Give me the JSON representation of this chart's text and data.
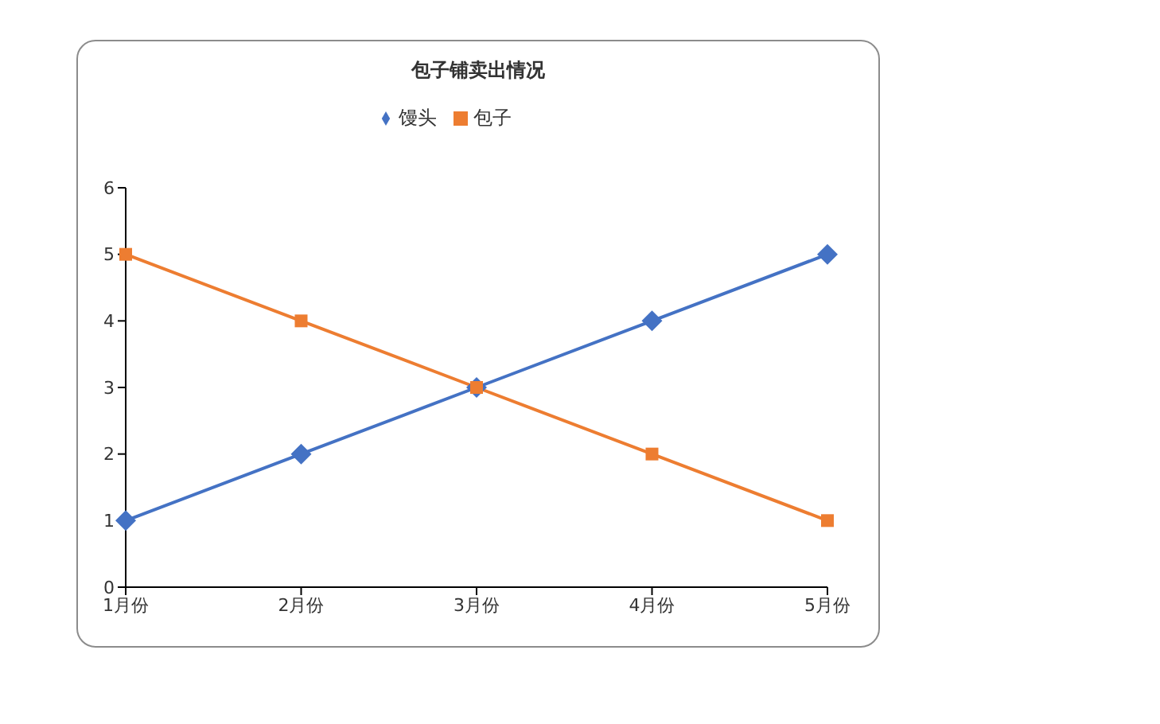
{
  "chart_data": {
    "type": "line",
    "title": "包子铺卖出情况",
    "categories": [
      "1月份",
      "2月份",
      "3月份",
      "4月份",
      "5月份"
    ],
    "series": [
      {
        "name": "馒头",
        "color": "#4472c4",
        "values": [
          1,
          2,
          3,
          4,
          5
        ],
        "marker": "diamond"
      },
      {
        "name": "包子",
        "color": "#ed7d31",
        "values": [
          5,
          4,
          3,
          2,
          1
        ],
        "marker": "square"
      }
    ],
    "ylim": [
      0,
      6
    ],
    "yticks": [
      0,
      1,
      2,
      3,
      4,
      5,
      6
    ],
    "grid": false,
    "legend": "top",
    "line_style": "solid"
  }
}
